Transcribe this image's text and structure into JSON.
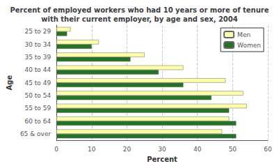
{
  "chart_data": {
    "type": "bar",
    "orientation": "horizontal",
    "title": "Percent of employed workers who had 10 years or more of tenure\nwith their current employer, by age and sex, 2004",
    "categories": [
      "65 & over",
      "60 to 64",
      "55 to 59",
      "50 to 54",
      "45 to 49",
      "40 to 44",
      "35 to 39",
      "30 to 34",
      "25 to 29"
    ],
    "series": [
      {
        "name": "Men",
        "color": "#FFFFAA",
        "values": [
          47,
          49,
          54,
          53,
          48,
          36,
          25,
          12,
          4
        ]
      },
      {
        "name": "Women",
        "color": "#267326",
        "values": [
          51,
          51,
          49,
          44,
          36,
          29,
          21,
          10,
          3
        ]
      }
    ],
    "xlabel": "Percent",
    "ylabel": "Age",
    "xlim": [
      0,
      60
    ],
    "xticks": [
      0,
      10,
      20,
      30,
      40,
      50,
      60
    ],
    "grid": true,
    "legend": "upper right"
  }
}
